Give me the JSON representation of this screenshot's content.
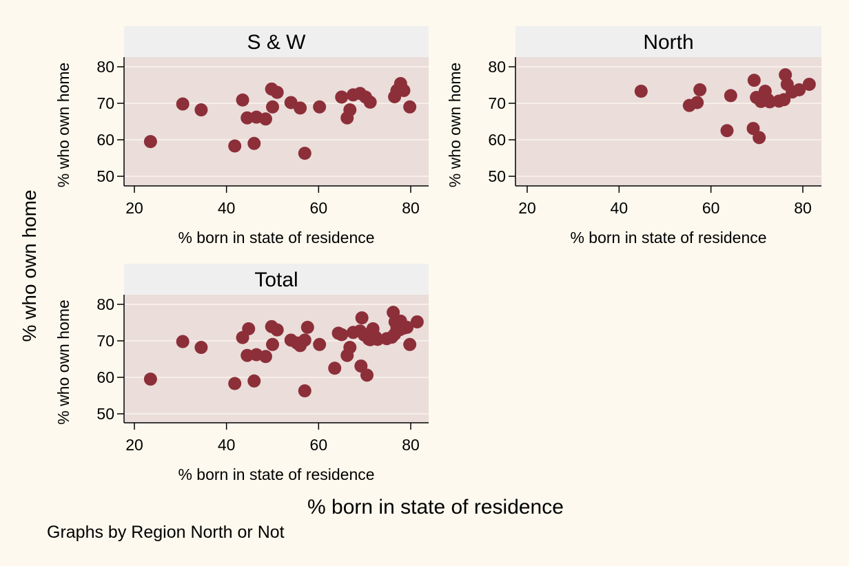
{
  "colors": {
    "background": "#fdf9ee",
    "plot_area": "#eaddda",
    "title_strip": "#efefef",
    "marker": "#8c2f39",
    "grid": "#f7efe8"
  },
  "ylabel_outer": "% who own home",
  "xlabel_outer": "% born in state of residence",
  "note": "Graphs by Region North or Not",
  "chart_data": [
    {
      "type": "scatter",
      "title": "S & W",
      "xlabel": "% born in state of residence",
      "ylabel": "% who own home",
      "xlim": [
        20,
        80
      ],
      "ylim": [
        50,
        80
      ],
      "xticks": [
        "20",
        "40",
        "60",
        "80"
      ],
      "yticks": [
        "50",
        "60",
        "70",
        "80"
      ],
      "grid": true,
      "points": [
        {
          "x": 23.5,
          "y": 59.5
        },
        {
          "x": 30.5,
          "y": 69.8
        },
        {
          "x": 34.5,
          "y": 68.2
        },
        {
          "x": 41.8,
          "y": 58.3
        },
        {
          "x": 43.5,
          "y": 70.9
        },
        {
          "x": 44.5,
          "y": 66.0
        },
        {
          "x": 46.0,
          "y": 59.0
        },
        {
          "x": 46.5,
          "y": 66.2
        },
        {
          "x": 48.5,
          "y": 65.7
        },
        {
          "x": 49.8,
          "y": 73.9
        },
        {
          "x": 50.0,
          "y": 69.0
        },
        {
          "x": 51.0,
          "y": 73.0
        },
        {
          "x": 54.0,
          "y": 70.2
        },
        {
          "x": 56.0,
          "y": 68.7
        },
        {
          "x": 57.0,
          "y": 56.3
        },
        {
          "x": 60.2,
          "y": 69.0
        },
        {
          "x": 65.0,
          "y": 71.7
        },
        {
          "x": 66.2,
          "y": 66.0
        },
        {
          "x": 66.8,
          "y": 68.2
        },
        {
          "x": 67.5,
          "y": 72.3
        },
        {
          "x": 69.0,
          "y": 72.7
        },
        {
          "x": 70.2,
          "y": 71.7
        },
        {
          "x": 71.2,
          "y": 70.3
        },
        {
          "x": 76.5,
          "y": 71.8
        },
        {
          "x": 77.0,
          "y": 73.5
        },
        {
          "x": 77.8,
          "y": 75.4
        },
        {
          "x": 78.5,
          "y": 73.5
        },
        {
          "x": 79.8,
          "y": 69.0
        }
      ]
    },
    {
      "type": "scatter",
      "title": "North",
      "xlabel": "% born in state of residence",
      "ylabel": "% who own home",
      "xlim": [
        20,
        80
      ],
      "ylim": [
        50,
        80
      ],
      "xticks": [
        "20",
        "40",
        "60",
        "80"
      ],
      "yticks": [
        "50",
        "60",
        "70",
        "80"
      ],
      "grid": true,
      "points": [
        {
          "x": 44.8,
          "y": 73.3
        },
        {
          "x": 55.3,
          "y": 69.4
        },
        {
          "x": 57.0,
          "y": 70.2
        },
        {
          "x": 57.6,
          "y": 73.7
        },
        {
          "x": 63.5,
          "y": 62.5
        },
        {
          "x": 64.3,
          "y": 72.1
        },
        {
          "x": 69.2,
          "y": 63.1
        },
        {
          "x": 69.4,
          "y": 76.3
        },
        {
          "x": 69.9,
          "y": 71.6
        },
        {
          "x": 70.5,
          "y": 60.6
        },
        {
          "x": 70.9,
          "y": 70.5
        },
        {
          "x": 71.8,
          "y": 73.3
        },
        {
          "x": 72.4,
          "y": 71.0
        },
        {
          "x": 72.8,
          "y": 70.4
        },
        {
          "x": 74.8,
          "y": 70.6
        },
        {
          "x": 75.9,
          "y": 71.0
        },
        {
          "x": 76.2,
          "y": 77.8
        },
        {
          "x": 76.6,
          "y": 75.2
        },
        {
          "x": 77.7,
          "y": 73.1
        },
        {
          "x": 79.2,
          "y": 73.7
        },
        {
          "x": 81.4,
          "y": 75.2
        }
      ]
    },
    {
      "type": "scatter",
      "title": "Total",
      "xlabel": "% born in state of residence",
      "ylabel": "% who own home",
      "xlim": [
        20,
        80
      ],
      "ylim": [
        50,
        80
      ],
      "xticks": [
        "20",
        "40",
        "60",
        "80"
      ],
      "yticks": [
        "50",
        "60",
        "70",
        "80"
      ],
      "grid": true,
      "points": [
        {
          "x": 23.5,
          "y": 59.5
        },
        {
          "x": 30.5,
          "y": 69.8
        },
        {
          "x": 34.5,
          "y": 68.2
        },
        {
          "x": 41.8,
          "y": 58.3
        },
        {
          "x": 43.5,
          "y": 70.9
        },
        {
          "x": 44.5,
          "y": 66.0
        },
        {
          "x": 44.8,
          "y": 73.3
        },
        {
          "x": 46.0,
          "y": 59.0
        },
        {
          "x": 46.5,
          "y": 66.2
        },
        {
          "x": 48.5,
          "y": 65.7
        },
        {
          "x": 49.8,
          "y": 73.9
        },
        {
          "x": 50.0,
          "y": 69.0
        },
        {
          "x": 51.0,
          "y": 73.0
        },
        {
          "x": 54.0,
          "y": 70.2
        },
        {
          "x": 55.3,
          "y": 69.4
        },
        {
          "x": 56.0,
          "y": 68.7
        },
        {
          "x": 57.0,
          "y": 56.3
        },
        {
          "x": 57.0,
          "y": 70.2
        },
        {
          "x": 57.6,
          "y": 73.7
        },
        {
          "x": 60.2,
          "y": 69.0
        },
        {
          "x": 63.5,
          "y": 62.5
        },
        {
          "x": 64.3,
          "y": 72.1
        },
        {
          "x": 65.0,
          "y": 71.7
        },
        {
          "x": 66.2,
          "y": 66.0
        },
        {
          "x": 66.8,
          "y": 68.2
        },
        {
          "x": 67.5,
          "y": 72.3
        },
        {
          "x": 69.0,
          "y": 72.7
        },
        {
          "x": 69.2,
          "y": 63.1
        },
        {
          "x": 69.4,
          "y": 76.3
        },
        {
          "x": 69.9,
          "y": 71.6
        },
        {
          "x": 70.2,
          "y": 71.7
        },
        {
          "x": 70.5,
          "y": 60.6
        },
        {
          "x": 70.9,
          "y": 70.5
        },
        {
          "x": 71.2,
          "y": 70.3
        },
        {
          "x": 71.8,
          "y": 73.3
        },
        {
          "x": 72.4,
          "y": 71.0
        },
        {
          "x": 72.8,
          "y": 70.4
        },
        {
          "x": 74.8,
          "y": 70.6
        },
        {
          "x": 75.9,
          "y": 71.0
        },
        {
          "x": 76.2,
          "y": 77.8
        },
        {
          "x": 76.5,
          "y": 71.8
        },
        {
          "x": 76.6,
          "y": 75.2
        },
        {
          "x": 77.0,
          "y": 73.5
        },
        {
          "x": 77.7,
          "y": 73.1
        },
        {
          "x": 77.8,
          "y": 75.4
        },
        {
          "x": 78.5,
          "y": 73.5
        },
        {
          "x": 79.2,
          "y": 73.7
        },
        {
          "x": 79.8,
          "y": 69.0
        },
        {
          "x": 81.4,
          "y": 75.2
        }
      ]
    }
  ]
}
